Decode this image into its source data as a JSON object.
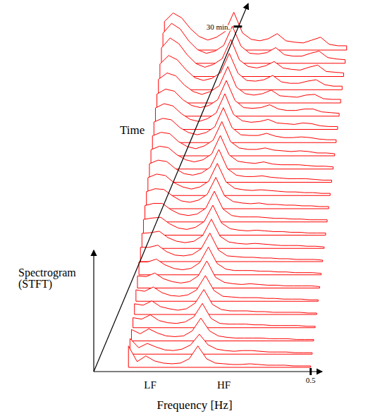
{
  "chart_data": {
    "type": "waterfall",
    "x_label": "Frequency [Hz]",
    "y_label": "Spectrogram (STFT)",
    "time_label": "Time",
    "color": "#ff0000",
    "xlim": [
      0,
      0.52
    ],
    "xticks": [
      {
        "value": 0.13,
        "label": "LF"
      },
      {
        "value": 0.3,
        "label": "HF"
      },
      0.5
    ],
    "ylim": [
      0,
      17
    ],
    "time_lim": [
      0,
      32
    ],
    "time_ticks": [
      {
        "value": 30,
        "label": "30 min."
      }
    ],
    "x": [
      0.08,
      0.1,
      0.12,
      0.14,
      0.16,
      0.18,
      0.2,
      0.22,
      0.24,
      0.26,
      0.28,
      0.3,
      0.32,
      0.34,
      0.36,
      0.38,
      0.4,
      0.42,
      0.44,
      0.46,
      0.48,
      0.5
    ],
    "series": [
      {
        "time": 0,
        "values": [
          3.0,
          0.8,
          1.6,
          0.9,
          0.6,
          0.5,
          0.6,
          1.2,
          3.0,
          1.2,
          0.6,
          0.5,
          0.4,
          0.4,
          0.5,
          0.4,
          0.3,
          0.3,
          0.3,
          0.2,
          0.2,
          0.2
        ]
      },
      {
        "time": 1.25,
        "values": [
          2.2,
          0.9,
          1.5,
          1.0,
          0.6,
          0.5,
          0.7,
          1.3,
          2.8,
          1.3,
          0.7,
          0.5,
          0.4,
          0.5,
          0.5,
          0.4,
          0.3,
          0.3,
          0.3,
          0.2,
          0.2,
          0.2
        ]
      },
      {
        "time": 2.5,
        "values": [
          1.6,
          1.0,
          1.7,
          1.1,
          0.7,
          0.6,
          0.7,
          1.4,
          3.2,
          1.4,
          0.7,
          0.5,
          0.4,
          0.4,
          0.4,
          0.4,
          0.3,
          0.3,
          0.3,
          0.2,
          0.2,
          0.2
        ]
      },
      {
        "time": 3.75,
        "values": [
          1.4,
          1.2,
          1.8,
          1.0,
          0.7,
          0.6,
          0.8,
          1.5,
          3.4,
          1.3,
          0.6,
          0.5,
          0.5,
          0.5,
          0.4,
          0.4,
          0.3,
          0.3,
          0.3,
          0.3,
          0.2,
          0.2
        ]
      },
      {
        "time": 5,
        "values": [
          1.5,
          1.3,
          1.9,
          1.1,
          0.8,
          0.6,
          0.8,
          1.6,
          3.5,
          1.4,
          0.7,
          0.5,
          0.5,
          0.5,
          0.4,
          0.4,
          0.3,
          0.3,
          0.3,
          0.3,
          0.2,
          0.2
        ]
      },
      {
        "time": 6.25,
        "values": [
          1.6,
          1.4,
          2.0,
          1.2,
          0.8,
          0.7,
          0.9,
          1.6,
          3.6,
          1.5,
          0.7,
          0.6,
          0.5,
          0.5,
          0.5,
          0.4,
          0.4,
          0.3,
          0.3,
          0.3,
          0.2,
          0.2
        ]
      },
      {
        "time": 7.5,
        "values": [
          1.7,
          1.6,
          2.1,
          1.3,
          0.9,
          0.7,
          0.9,
          1.7,
          3.8,
          1.5,
          0.8,
          0.6,
          0.5,
          0.6,
          0.5,
          0.4,
          0.4,
          0.3,
          0.3,
          0.3,
          0.3,
          0.2
        ]
      },
      {
        "time": 8.75,
        "values": [
          1.8,
          1.8,
          2.2,
          1.4,
          0.9,
          0.7,
          0.9,
          1.7,
          3.9,
          1.6,
          0.8,
          0.6,
          0.6,
          0.6,
          0.5,
          0.5,
          0.4,
          0.4,
          0.3,
          0.3,
          0.3,
          0.2
        ]
      },
      {
        "time": 10,
        "values": [
          2.0,
          2.0,
          2.3,
          1.4,
          0.9,
          0.8,
          1.0,
          1.8,
          4.0,
          1.6,
          0.8,
          0.7,
          0.6,
          0.6,
          0.5,
          0.5,
          0.4,
          0.4,
          0.3,
          0.3,
          0.3,
          0.2
        ]
      },
      {
        "time": 11.25,
        "values": [
          2.1,
          2.2,
          2.4,
          1.5,
          1.0,
          0.8,
          1.0,
          1.8,
          4.1,
          1.7,
          0.9,
          0.7,
          0.6,
          0.7,
          0.6,
          0.5,
          0.4,
          0.4,
          0.4,
          0.3,
          0.3,
          0.2
        ]
      },
      {
        "time": 12.5,
        "values": [
          2.2,
          2.4,
          2.5,
          1.6,
          1.0,
          0.8,
          1.1,
          1.9,
          4.2,
          1.7,
          0.9,
          0.7,
          0.6,
          0.7,
          0.6,
          0.5,
          0.5,
          0.4,
          0.4,
          0.3,
          0.3,
          0.3
        ]
      },
      {
        "time": 13.75,
        "values": [
          2.3,
          2.6,
          2.6,
          1.7,
          1.1,
          0.9,
          1.1,
          1.9,
          4.3,
          1.8,
          0.9,
          0.7,
          0.7,
          0.7,
          0.6,
          0.5,
          0.5,
          0.4,
          0.4,
          0.3,
          0.3,
          0.3
        ]
      },
      {
        "time": 15,
        "values": [
          2.4,
          2.8,
          2.7,
          1.8,
          1.1,
          0.9,
          1.2,
          2.0,
          4.4,
          1.8,
          1.0,
          0.8,
          0.7,
          0.8,
          0.6,
          0.6,
          0.5,
          0.5,
          0.4,
          0.4,
          0.3,
          0.3
        ]
      },
      {
        "time": 16.25,
        "values": [
          2.5,
          3.0,
          2.8,
          1.8,
          1.2,
          0.9,
          1.2,
          2.0,
          4.5,
          1.9,
          1.0,
          0.8,
          0.7,
          0.8,
          0.7,
          0.6,
          0.5,
          0.5,
          0.4,
          0.4,
          0.3,
          0.3
        ]
      },
      {
        "time": 17.5,
        "values": [
          2.6,
          3.1,
          2.9,
          1.9,
          1.2,
          1.0,
          1.3,
          2.1,
          4.6,
          1.9,
          1.0,
          0.8,
          0.8,
          0.9,
          0.7,
          0.6,
          0.5,
          0.5,
          0.5,
          0.4,
          0.3,
          0.3
        ]
      },
      {
        "time": 18.75,
        "values": [
          2.7,
          3.2,
          3.0,
          2.0,
          1.3,
          1.0,
          1.3,
          2.1,
          4.7,
          2.0,
          1.1,
          0.9,
          0.8,
          1.0,
          0.7,
          0.6,
          0.6,
          0.6,
          0.5,
          0.4,
          0.4,
          0.3
        ]
      },
      {
        "time": 20,
        "values": [
          2.8,
          3.3,
          3.1,
          2.0,
          1.3,
          1.0,
          1.4,
          2.2,
          4.8,
          2.0,
          1.1,
          0.9,
          0.9,
          1.1,
          0.8,
          0.7,
          0.6,
          0.7,
          0.6,
          0.4,
          0.4,
          0.3
        ]
      },
      {
        "time": 21.25,
        "values": [
          2.9,
          3.4,
          3.2,
          2.1,
          1.4,
          1.1,
          1.4,
          2.2,
          4.9,
          2.1,
          1.1,
          1.0,
          1.0,
          1.3,
          0.9,
          0.7,
          0.7,
          0.8,
          0.7,
          0.5,
          0.4,
          0.4
        ]
      },
      {
        "time": 22.5,
        "values": [
          3.0,
          3.6,
          3.3,
          2.2,
          1.4,
          1.1,
          1.5,
          2.3,
          5.0,
          2.1,
          1.2,
          1.0,
          1.1,
          1.4,
          0.9,
          0.8,
          0.7,
          0.9,
          0.8,
          0.5,
          0.4,
          0.4
        ]
      },
      {
        "time": 23.75,
        "values": [
          3.1,
          3.8,
          3.5,
          2.3,
          1.5,
          1.2,
          1.5,
          2.3,
          5.0,
          2.2,
          1.2,
          1.1,
          1.2,
          1.6,
          1.0,
          0.8,
          0.8,
          1.0,
          1.0,
          0.6,
          0.5,
          0.4
        ]
      },
      {
        "time": 25,
        "values": [
          3.3,
          4.2,
          3.8,
          2.5,
          1.6,
          1.2,
          1.6,
          2.4,
          5.1,
          2.2,
          1.3,
          1.1,
          1.3,
          1.8,
          1.0,
          0.9,
          0.8,
          1.1,
          1.2,
          0.6,
          0.5,
          0.5
        ]
      },
      {
        "time": 26.25,
        "values": [
          3.6,
          4.8,
          4.2,
          2.8,
          1.7,
          1.3,
          1.6,
          2.4,
          5.1,
          2.3,
          1.3,
          1.2,
          1.4,
          2.0,
          1.1,
          0.9,
          0.9,
          1.2,
          1.4,
          0.7,
          0.5,
          0.5
        ]
      },
      {
        "time": 27.5,
        "values": [
          4.0,
          5.4,
          4.6,
          3.0,
          1.8,
          1.3,
          1.7,
          2.5,
          5.2,
          2.3,
          1.4,
          1.2,
          1.5,
          2.1,
          1.2,
          1.0,
          0.9,
          1.3,
          1.6,
          0.7,
          0.6,
          0.5
        ]
      },
      {
        "time": 28.75,
        "values": [
          4.2,
          5.6,
          4.8,
          3.1,
          1.9,
          1.4,
          1.7,
          2.5,
          5.2,
          2.4,
          1.4,
          1.3,
          1.5,
          2.2,
          1.2,
          1.0,
          1.0,
          1.4,
          1.7,
          0.8,
          0.6,
          0.5
        ]
      },
      {
        "time": 30,
        "values": [
          4.0,
          5.2,
          4.5,
          3.0,
          1.9,
          1.4,
          1.8,
          2.6,
          5.3,
          2.4,
          1.5,
          1.3,
          1.6,
          2.3,
          1.3,
          1.1,
          1.0,
          1.4,
          1.8,
          0.8,
          0.6,
          0.6
        ]
      }
    ]
  }
}
